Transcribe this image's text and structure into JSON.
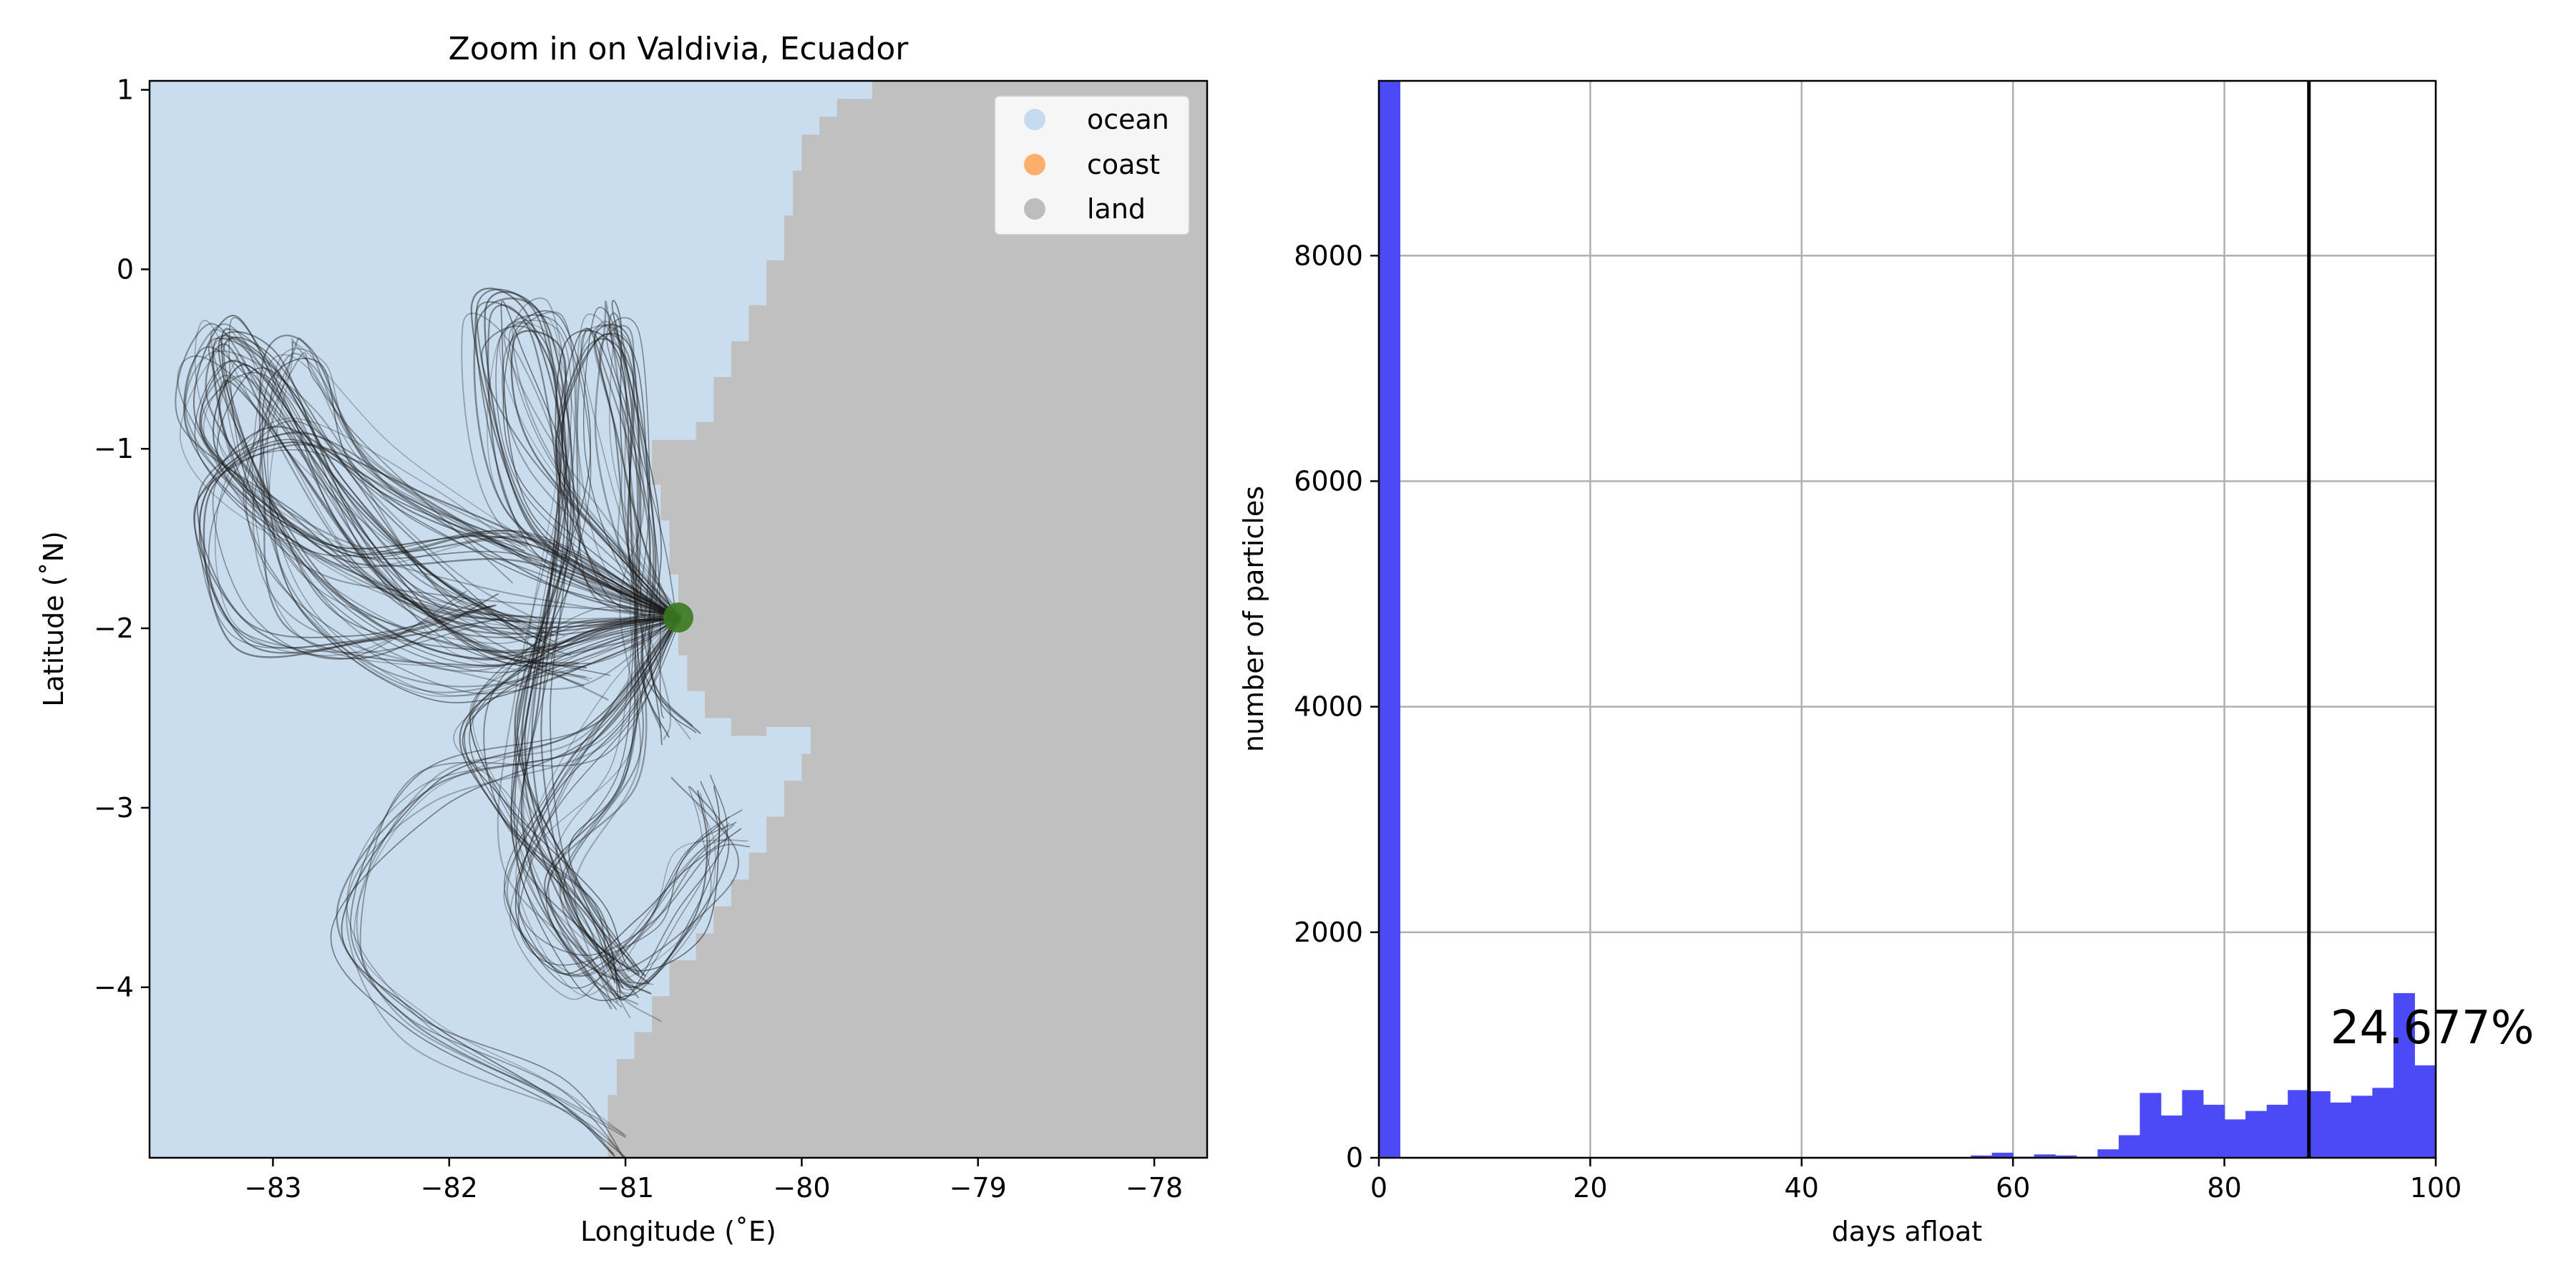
{
  "chart_data": [
    {
      "type": "map",
      "title": "Zoom in on Valdivia, Ecuador",
      "xlabel": "Longitude (˚E)",
      "ylabel": "Latitude (˚N)",
      "xlim": [
        -83.7,
        -77.7
      ],
      "ylim": [
        -4.95,
        1.05
      ],
      "xticks": [
        -83,
        -82,
        -81,
        -80,
        -79,
        -78
      ],
      "xtick_labels": [
        "−83",
        "−82",
        "−81",
        "−80",
        "−79",
        "−78"
      ],
      "yticks": [
        1,
        0,
        -1,
        -2,
        -3,
        -4
      ],
      "ytick_labels": [
        "1",
        "0",
        "−1",
        "−2",
        "−3",
        "−4"
      ],
      "legend": {
        "placement": "top-right",
        "entries": [
          {
            "label": "ocean",
            "color": "#c6dbef"
          },
          {
            "label": "coast",
            "color": "#fdae6b"
          },
          {
            "label": "land",
            "color": "#bdbdbd"
          }
        ]
      },
      "colors": {
        "ocean": "#c9ddef",
        "land": "#c0c0c0",
        "release_point": "#3a7a1e",
        "trajectory": "#1a1a1a"
      },
      "release_point": {
        "lon": -80.7,
        "lat": -1.94
      },
      "coastline": [
        [
          -79.6,
          1.05
        ],
        [
          -79.6,
          0.95
        ],
        [
          -79.8,
          0.95
        ],
        [
          -79.8,
          0.85
        ],
        [
          -79.9,
          0.85
        ],
        [
          -79.9,
          0.75
        ],
        [
          -80.0,
          0.75
        ],
        [
          -80.0,
          0.55
        ],
        [
          -80.05,
          0.55
        ],
        [
          -80.05,
          0.3
        ],
        [
          -80.1,
          0.3
        ],
        [
          -80.1,
          0.05
        ],
        [
          -80.2,
          0.05
        ],
        [
          -80.2,
          -0.2
        ],
        [
          -80.3,
          -0.2
        ],
        [
          -80.3,
          -0.4
        ],
        [
          -80.4,
          -0.4
        ],
        [
          -80.4,
          -0.6
        ],
        [
          -80.5,
          -0.6
        ],
        [
          -80.5,
          -0.85
        ],
        [
          -80.6,
          -0.85
        ],
        [
          -80.6,
          -0.95
        ],
        [
          -80.85,
          -0.95
        ],
        [
          -80.85,
          -1.2
        ],
        [
          -80.8,
          -1.2
        ],
        [
          -80.8,
          -1.4
        ],
        [
          -80.75,
          -1.4
        ],
        [
          -80.75,
          -1.7
        ],
        [
          -80.7,
          -1.7
        ],
        [
          -80.7,
          -2.15
        ],
        [
          -80.65,
          -2.15
        ],
        [
          -80.65,
          -2.35
        ],
        [
          -80.55,
          -2.35
        ],
        [
          -80.55,
          -2.5
        ],
        [
          -80.4,
          -2.5
        ],
        [
          -80.4,
          -2.6
        ],
        [
          -80.2,
          -2.6
        ],
        [
          -80.2,
          -2.55
        ],
        [
          -79.95,
          -2.55
        ],
        [
          -79.95,
          -2.7
        ],
        [
          -80.0,
          -2.7
        ],
        [
          -80.0,
          -2.85
        ],
        [
          -80.1,
          -2.85
        ],
        [
          -80.1,
          -3.05
        ],
        [
          -80.2,
          -3.05
        ],
        [
          -80.2,
          -3.25
        ],
        [
          -80.3,
          -3.25
        ],
        [
          -80.3,
          -3.4
        ],
        [
          -80.4,
          -3.4
        ],
        [
          -80.4,
          -3.55
        ],
        [
          -80.5,
          -3.55
        ],
        [
          -80.5,
          -3.7
        ],
        [
          -80.6,
          -3.7
        ],
        [
          -80.6,
          -3.85
        ],
        [
          -80.75,
          -3.85
        ],
        [
          -80.75,
          -4.05
        ],
        [
          -80.85,
          -4.05
        ],
        [
          -80.85,
          -4.25
        ],
        [
          -80.95,
          -4.25
        ],
        [
          -80.95,
          -4.4
        ],
        [
          -81.05,
          -4.4
        ],
        [
          -81.05,
          -4.6
        ],
        [
          -81.1,
          -4.6
        ],
        [
          -81.1,
          -4.95
        ]
      ],
      "trajectory_waypoints": [
        [
          [
            -80.7,
            -1.94
          ],
          [
            -81.0,
            -2.0
          ],
          [
            -81.8,
            -2.2
          ],
          [
            -82.6,
            -1.9
          ],
          [
            -83.1,
            -1.2
          ],
          [
            -83.3,
            -0.4
          ],
          [
            -83.0,
            -0.5
          ],
          [
            -82.6,
            -1.2
          ],
          [
            -82.0,
            -1.8
          ],
          [
            -81.4,
            -2.1
          ]
        ],
        [
          [
            -80.7,
            -1.94
          ],
          [
            -81.1,
            -1.7
          ],
          [
            -81.3,
            -1.0
          ],
          [
            -81.25,
            -0.3
          ],
          [
            -81.05,
            -0.6
          ],
          [
            -80.9,
            -1.5
          ],
          [
            -80.85,
            -2.3
          ],
          [
            -80.7,
            -2.6
          ]
        ],
        [
          [
            -80.7,
            -1.94
          ],
          [
            -81.3,
            -2.1
          ],
          [
            -81.9,
            -2.5
          ],
          [
            -81.7,
            -3.0
          ],
          [
            -81.2,
            -3.6
          ],
          [
            -80.95,
            -4.0
          ],
          [
            -80.6,
            -3.6
          ],
          [
            -80.5,
            -3.2
          ],
          [
            -80.6,
            -2.9
          ]
        ],
        [
          [
            -80.7,
            -1.94
          ],
          [
            -81.4,
            -1.7
          ],
          [
            -82.2,
            -1.3
          ],
          [
            -82.9,
            -0.9
          ],
          [
            -83.4,
            -1.3
          ],
          [
            -83.2,
            -2.0
          ],
          [
            -82.5,
            -2.1
          ],
          [
            -81.8,
            -1.9
          ]
        ],
        [
          [
            -80.7,
            -1.94
          ],
          [
            -81.5,
            -1.1
          ],
          [
            -81.7,
            -0.45
          ],
          [
            -81.4,
            -0.3
          ],
          [
            -81.3,
            -1.0
          ],
          [
            -81.5,
            -2.2
          ],
          [
            -81.6,
            -3.2
          ],
          [
            -81.2,
            -3.9
          ],
          [
            -80.9,
            -4.05
          ]
        ],
        [
          [
            -80.7,
            -1.94
          ],
          [
            -81.0,
            -2.4
          ],
          [
            -81.4,
            -2.9
          ],
          [
            -81.7,
            -3.5
          ],
          [
            -81.3,
            -3.95
          ],
          [
            -80.9,
            -3.7
          ],
          [
            -80.6,
            -3.3
          ],
          [
            -80.4,
            -3.1
          ]
        ],
        [
          [
            -80.7,
            -1.94
          ],
          [
            -81.6,
            -1.5
          ],
          [
            -82.6,
            -1.6
          ],
          [
            -83.35,
            -1.0
          ],
          [
            -83.25,
            -0.55
          ],
          [
            -82.95,
            -0.8
          ],
          [
            -82.5,
            -1.6
          ],
          [
            -81.9,
            -2.05
          ],
          [
            -81.2,
            -2.3
          ]
        ],
        [
          [
            -80.7,
            -1.94
          ],
          [
            -80.9,
            -1.6
          ],
          [
            -81.05,
            -0.9
          ],
          [
            -81.15,
            -0.4
          ],
          [
            -81.0,
            -0.35
          ],
          [
            -80.95,
            -1.2
          ],
          [
            -80.9,
            -2.0
          ],
          [
            -81.0,
            -2.8
          ],
          [
            -81.4,
            -3.4
          ],
          [
            -81.0,
            -4.05
          ]
        ],
        [
          [
            -80.7,
            -1.94
          ],
          [
            -81.2,
            -2.2
          ],
          [
            -82.0,
            -2.3
          ],
          [
            -82.8,
            -2.0
          ],
          [
            -83.1,
            -1.3
          ],
          [
            -83.0,
            -0.6
          ],
          [
            -82.8,
            -0.5
          ],
          [
            -82.4,
            -1.1
          ],
          [
            -81.6,
            -1.6
          ]
        ],
        [
          [
            -80.7,
            -1.94
          ],
          [
            -81.2,
            -2.6
          ],
          [
            -82.1,
            -2.9
          ],
          [
            -82.6,
            -3.6
          ],
          [
            -82.2,
            -4.2
          ],
          [
            -81.4,
            -4.6
          ],
          [
            -81.05,
            -4.9
          ]
        ],
        [
          [
            -80.7,
            -1.94
          ],
          [
            -81.6,
            -1.4
          ],
          [
            -81.8,
            -0.3
          ],
          [
            -81.5,
            -0.35
          ],
          [
            -81.35,
            -1.4
          ],
          [
            -81.55,
            -2.6
          ],
          [
            -81.3,
            -3.5
          ],
          [
            -80.95,
            -3.95
          ]
        ],
        [
          [
            -80.7,
            -1.94
          ],
          [
            -81.9,
            -1.9
          ],
          [
            -82.9,
            -1.5
          ],
          [
            -83.45,
            -0.85
          ],
          [
            -83.3,
            -0.35
          ],
          [
            -82.85,
            -0.9
          ],
          [
            -82.25,
            -1.7
          ],
          [
            -81.5,
            -2.0
          ]
        ]
      ]
    },
    {
      "type": "bar",
      "xlabel": "days afloat",
      "ylabel": "number of particles",
      "xlim": [
        0,
        100
      ],
      "ylim": [
        0,
        9550
      ],
      "xticks": [
        0,
        20,
        40,
        60,
        80,
        100
      ],
      "yticks": [
        0,
        2000,
        4000,
        6000,
        8000
      ],
      "grid": true,
      "bar_color": "#4b4bf5",
      "bin_width": 2,
      "bin_starts": [
        0,
        2,
        4,
        6,
        8,
        10,
        12,
        14,
        16,
        18,
        20,
        22,
        24,
        26,
        28,
        30,
        32,
        34,
        36,
        38,
        40,
        42,
        44,
        46,
        48,
        50,
        52,
        54,
        56,
        58,
        60,
        62,
        64,
        66,
        68,
        70,
        72,
        74,
        76,
        78,
        80,
        82,
        84,
        86,
        88,
        90,
        92,
        94,
        96,
        98
      ],
      "values": [
        9550,
        0,
        0,
        0,
        0,
        0,
        0,
        0,
        0,
        0,
        0,
        0,
        0,
        0,
        0,
        0,
        0,
        0,
        0,
        0,
        0,
        0,
        0,
        0,
        0,
        0,
        0,
        0,
        20,
        45,
        10,
        30,
        20,
        10,
        75,
        200,
        575,
        375,
        600,
        470,
        340,
        415,
        470,
        600,
        590,
        490,
        550,
        620,
        1460,
        820
      ],
      "vline_x": 88,
      "annotation": "24.677%"
    }
  ]
}
